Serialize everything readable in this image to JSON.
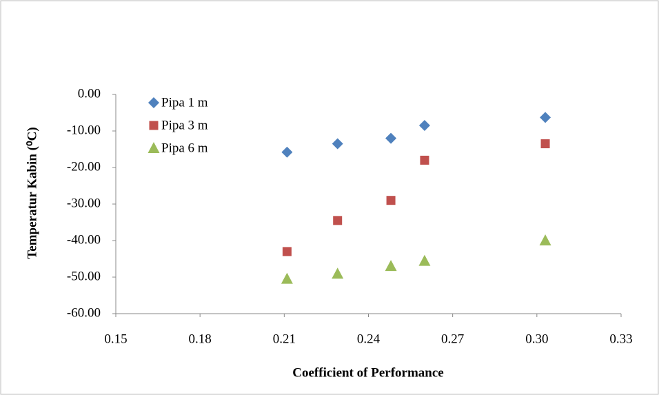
{
  "chart_data": {
    "type": "scatter",
    "x_label": "Coefficient of Performance",
    "y_label": "Temperatur  Kabin (⁰C)",
    "xlim": [
      0.15,
      0.33
    ],
    "xticks": [
      0.15,
      0.18,
      0.21,
      0.24,
      0.27,
      {
        "value": 0.3,
        "label": "0.30"
      },
      0.33
    ],
    "ylim": [
      -60,
      0
    ],
    "yticks": [
      {
        "value": 0,
        "label": "0.00"
      },
      {
        "value": -10,
        "label": "-10.00"
      },
      {
        "value": -20,
        "label": "-20.00"
      },
      {
        "value": -30,
        "label": "-30.00"
      },
      {
        "value": -40,
        "label": "-40.00"
      },
      {
        "value": -50,
        "label": "-50.00"
      },
      {
        "value": -60,
        "label": "-60.00"
      }
    ],
    "legend": "top-left",
    "series": [
      {
        "name": "Pipa 1 m",
        "color": "#4f81bd",
        "marker": "diamond",
        "x": [
          0.211,
          0.229,
          0.248,
          0.26,
          0.303
        ],
        "values": [
          -15.8,
          -13.5,
          -12,
          -8.5,
          -6.3
        ]
      },
      {
        "name": "Pipa 3 m",
        "color": "#c0504d",
        "marker": "square",
        "x": [
          0.211,
          0.229,
          0.248,
          0.26,
          0.303
        ],
        "values": [
          -43,
          -34.5,
          -29,
          -18,
          -13.5
        ]
      },
      {
        "name": "Pipa 6 m",
        "color": "#9bbb59",
        "marker": "triangle",
        "x": [
          0.211,
          0.229,
          0.248,
          0.26,
          0.303
        ],
        "values": [
          -50.5,
          -49.1,
          -47,
          -45.6,
          -40
        ]
      }
    ]
  }
}
